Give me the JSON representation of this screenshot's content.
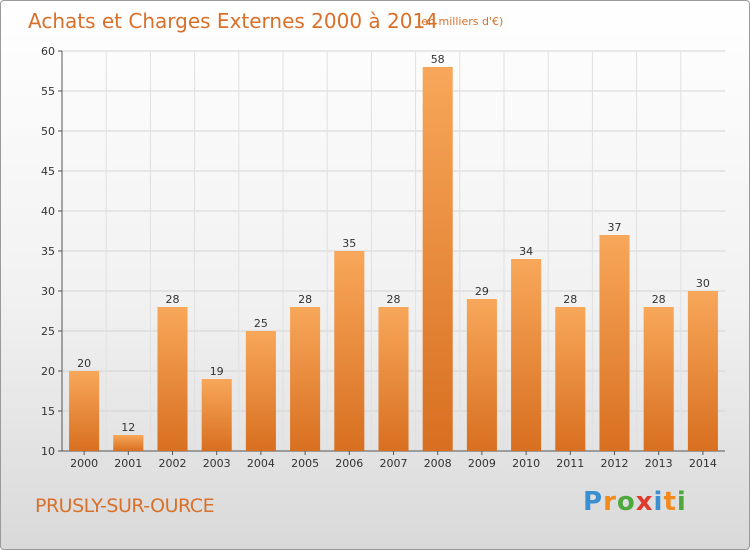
{
  "header": {
    "title": "Achats et Charges Externes 2000 à 2014",
    "subtitle": "(en milliers d'€)"
  },
  "footer": {
    "commune": "PRUSLY-SUR-OURCE",
    "logo_letters": [
      "P",
      "r",
      "o",
      "x",
      "i",
      "t",
      "i"
    ],
    "logo_colors": [
      "#3a8fd1",
      "#f08a1c",
      "#4fa83d",
      "#e03a2f",
      "#3a8fd1",
      "#f08a1c",
      "#4fa83d"
    ]
  },
  "chart_data": {
    "type": "bar",
    "categories": [
      "2000",
      "2001",
      "2002",
      "2003",
      "2004",
      "2005",
      "2006",
      "2007",
      "2008",
      "2009",
      "2010",
      "2011",
      "2012",
      "2013",
      "2014"
    ],
    "values": [
      20,
      12,
      28,
      19,
      25,
      28,
      35,
      28,
      58,
      29,
      34,
      28,
      37,
      28,
      30
    ],
    "title": "Achats et Charges Externes 2000 à 2014",
    "subtitle": "(en milliers d'€)",
    "xlabel": "",
    "ylabel": "",
    "ylim": [
      10,
      60
    ],
    "yticks": [
      10,
      15,
      20,
      25,
      30,
      35,
      40,
      45,
      50,
      55,
      60
    ],
    "grid": true,
    "data_labels": true,
    "bar_color_top": "#f8a75a",
    "bar_color_bottom": "#d86f20",
    "legend": "none"
  }
}
